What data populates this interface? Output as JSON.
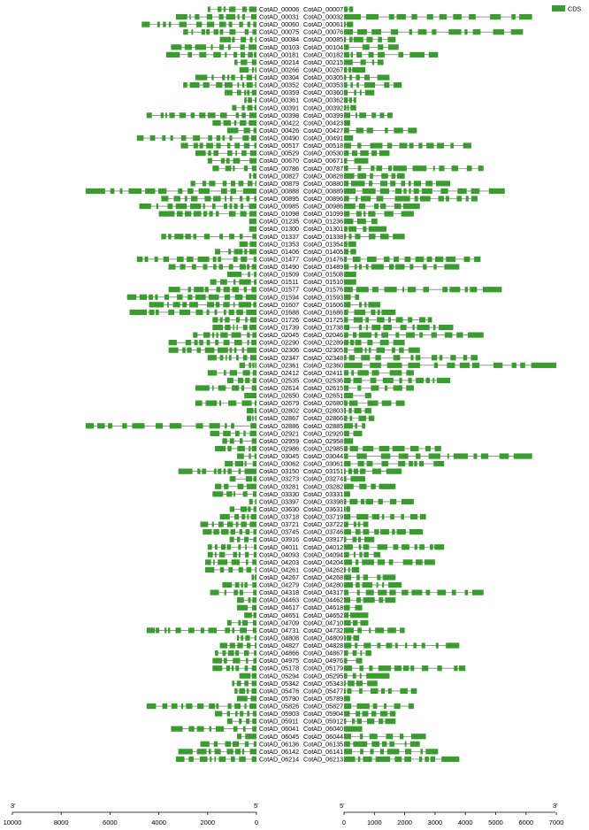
{
  "chart_data": {
    "type": "gene_structure",
    "legend": [
      {
        "label": "CDS",
        "color": "#3a9b2e"
      }
    ],
    "left_axis": {
      "reversed": true,
      "ticks": [
        10000,
        8000,
        6000,
        4000,
        2000,
        0
      ],
      "end_label": "3'",
      "zero_label": "5'"
    },
    "right_axis": {
      "ticks": [
        0,
        1000,
        2000,
        3000,
        4000,
        5000,
        6000,
        7000
      ],
      "start_label": "5'",
      "end_label": "3'"
    },
    "pairs": [
      {
        "left": "CotAD_00006",
        "right": "CotAD_00007",
        "left_len": 2000,
        "right_len": 300
      },
      {
        "left": "CotAD_00031",
        "right": "CotAD_00032",
        "left_len": 3300,
        "right_len": 6200
      },
      {
        "left": "CotAD_00060",
        "right": "CotAD_00061",
        "left_len": 4700,
        "right_len": 300
      },
      {
        "left": "CotAD_00075",
        "right": "CotAD_00076",
        "left_len": 3000,
        "right_len": 5900
      },
      {
        "left": "CotAD_00084",
        "right": "CotAD_00085",
        "left_len": 1500,
        "right_len": 1700
      },
      {
        "left": "CotAD_00103",
        "right": "CotAD_00104",
        "left_len": 3500,
        "right_len": 1800
      },
      {
        "left": "CotAD_00181",
        "right": "CotAD_00182",
        "left_len": 3700,
        "right_len": 3100
      },
      {
        "left": "CotAD_00214",
        "right": "CotAD_00215",
        "left_len": 900,
        "right_len": 1300
      },
      {
        "left": "CotAD_00266",
        "right": "CotAD_00267",
        "left_len": 700,
        "right_len": 700
      },
      {
        "left": "CotAD_00304",
        "right": "CotAD_00305",
        "left_len": 2500,
        "right_len": 1500
      },
      {
        "left": "CotAD_00352",
        "right": "CotAD_00353",
        "left_len": 3000,
        "right_len": 1900
      },
      {
        "left": "CotAD_00359",
        "right": "CotAD_00360",
        "left_len": 1300,
        "right_len": 1000
      },
      {
        "left": "CotAD_00361",
        "right": "CotAD_00362",
        "left_len": 500,
        "right_len": 400
      },
      {
        "left": "CotAD_00391",
        "right": "CotAD_00392",
        "left_len": 1000,
        "right_len": 400
      },
      {
        "left": "CotAD_00398",
        "right": "CotAD_00399",
        "left_len": 4500,
        "right_len": 1600
      },
      {
        "left": "CotAD_00422",
        "right": "CotAD_00423",
        "left_len": 1800,
        "right_len": 200
      },
      {
        "left": "CotAD_00426",
        "right": "CotAD_00427",
        "left_len": 1200,
        "right_len": 2400
      },
      {
        "left": "CotAD_00490",
        "right": "CotAD_00491",
        "left_len": 4900,
        "right_len": 300
      },
      {
        "left": "CotAD_00517",
        "right": "CotAD_00518",
        "left_len": 3100,
        "right_len": 4200
      },
      {
        "left": "CotAD_00529",
        "right": "CotAD_00530",
        "left_len": 2500,
        "right_len": 1500
      },
      {
        "left": "CotAD_00670",
        "right": "CotAD_00671",
        "left_len": 2000,
        "right_len": 800
      },
      {
        "left": "CotAD_00786",
        "right": "CotAD_00787",
        "left_len": 1800,
        "right_len": 4600
      },
      {
        "left": "CotAD_00827",
        "right": "CotAD_00828",
        "left_len": 300,
        "right_len": 2000
      },
      {
        "left": "CotAD_00879",
        "right": "CotAD_00880",
        "left_len": 2700,
        "right_len": 3500
      },
      {
        "left": "CotAD_00888",
        "right": "CotAD_00889",
        "left_len": 7000,
        "right_len": 5300
      },
      {
        "left": "CotAD_00895",
        "right": "CotAD_00896",
        "left_len": 3900,
        "right_len": 4400
      },
      {
        "left": "CotAD_00985",
        "right": "CotAD_00986",
        "left_len": 4800,
        "right_len": 2500
      },
      {
        "left": "CotAD_01098",
        "right": "CotAD_01099",
        "left_len": 4000,
        "right_len": 2300
      },
      {
        "left": "CotAD_01235",
        "right": "CotAD_01236",
        "left_len": 300,
        "right_len": 1100
      },
      {
        "left": "CotAD_01300",
        "right": "CotAD_01301",
        "left_len": 300,
        "right_len": 1400
      },
      {
        "left": "CotAD_01337",
        "right": "CotAD_01338",
        "left_len": 3900,
        "right_len": 2000
      },
      {
        "left": "CotAD_01353",
        "right": "CotAD_01354",
        "left_len": 700,
        "right_len": 400
      },
      {
        "left": "CotAD_01406",
        "right": "CotAD_01405",
        "left_len": 1700,
        "right_len": 400
      },
      {
        "left": "CotAD_01477",
        "right": "CotAD_01476",
        "left_len": 4900,
        "right_len": 4500
      },
      {
        "left": "CotAD_01490",
        "right": "CotAD_01489",
        "left_len": 3600,
        "right_len": 3800
      },
      {
        "left": "CotAD_01509",
        "right": "CotAD_01508",
        "left_len": 1200,
        "right_len": 400
      },
      {
        "left": "CotAD_01511",
        "right": "CotAD_01510",
        "left_len": 1900,
        "right_len": 400
      },
      {
        "left": "CotAD_01577",
        "right": "CotAD_01576",
        "left_len": 3600,
        "right_len": 5200
      },
      {
        "left": "CotAD_01594",
        "right": "CotAD_01593",
        "left_len": 5300,
        "right_len": 500
      },
      {
        "left": "CotAD_01607",
        "right": "CotAD_01606",
        "left_len": 4400,
        "right_len": 1200
      },
      {
        "left": "CotAD_01688",
        "right": "CotAD_01686",
        "left_len": 5200,
        "right_len": 1700
      },
      {
        "left": "CotAD_01726",
        "right": "CotAD_01725",
        "left_len": 1800,
        "right_len": 2900
      },
      {
        "left": "CotAD_01739",
        "right": "CotAD_01738",
        "left_len": 1800,
        "right_len": 3600
      },
      {
        "left": "CotAD_02045",
        "right": "CotAD_02046",
        "left_len": 2600,
        "right_len": 4600
      },
      {
        "left": "CotAD_02290",
        "right": "CotAD_02289",
        "left_len": 3600,
        "right_len": 2000
      },
      {
        "left": "CotAD_02306",
        "right": "CotAD_02305",
        "left_len": 3600,
        "right_len": 2500
      },
      {
        "left": "CotAD_02347",
        "right": "CotAD_02348",
        "left_len": 2000,
        "right_len": 4400
      },
      {
        "left": "CotAD_02361",
        "right": "CotAD_02360",
        "left_len": 700,
        "right_len": 7000
      },
      {
        "left": "CotAD_02412",
        "right": "CotAD_02411",
        "left_len": 2000,
        "right_len": 2300
      },
      {
        "left": "CotAD_02535",
        "right": "CotAD_02536",
        "left_len": 1200,
        "right_len": 3500
      },
      {
        "left": "CotAD_02614",
        "right": "CotAD_02615",
        "left_len": 2500,
        "right_len": 2300
      },
      {
        "left": "CotAD_02650",
        "right": "CotAD_02651",
        "left_len": 500,
        "right_len": 900
      },
      {
        "left": "CotAD_02679",
        "right": "CotAD_02680",
        "left_len": 2500,
        "right_len": 2000
      },
      {
        "left": "CotAD_02802",
        "right": "CotAD_02803",
        "left_len": 400,
        "right_len": 900
      },
      {
        "left": "CotAD_02867",
        "right": "CotAD_02866",
        "left_len": 400,
        "right_len": 1000
      },
      {
        "left": "CotAD_02886",
        "right": "CotAD_02885",
        "left_len": 7000,
        "right_len": 700
      },
      {
        "left": "CotAD_02921",
        "right": "CotAD_02920",
        "left_len": 1900,
        "right_len": 600
      },
      {
        "left": "CotAD_02959",
        "right": "CotAD_02958",
        "left_len": 1400,
        "right_len": 300
      },
      {
        "left": "CotAD_02986",
        "right": "CotAD_02985",
        "left_len": 1700,
        "right_len": 3200
      },
      {
        "left": "CotAD_03045",
        "right": "CotAD_03044",
        "left_len": 800,
        "right_len": 6200
      },
      {
        "left": "CotAD_03062",
        "right": "CotAD_03061",
        "left_len": 1300,
        "right_len": 3300
      },
      {
        "left": "CotAD_03150",
        "right": "CotAD_03151",
        "left_len": 3200,
        "right_len": 1900
      },
      {
        "left": "CotAD_03273",
        "right": "CotAD_03274",
        "left_len": 1100,
        "right_len": 700
      },
      {
        "left": "CotAD_03281",
        "right": "CotAD_03282",
        "left_len": 1700,
        "right_len": 1700
      },
      {
        "left": "CotAD_03330",
        "right": "CotAD_03331",
        "left_len": 1800,
        "right_len": 200
      },
      {
        "left": "CotAD_03397",
        "right": "CotAD_03398",
        "left_len": 300,
        "right_len": 2300
      },
      {
        "left": "CotAD_03630",
        "right": "CotAD_03631",
        "left_len": 1100,
        "right_len": 200
      },
      {
        "left": "CotAD_03718",
        "right": "CotAD_03719",
        "left_len": 1500,
        "right_len": 2700
      },
      {
        "left": "CotAD_03721",
        "right": "CotAD_03722",
        "left_len": 2300,
        "right_len": 800
      },
      {
        "left": "CotAD_03745",
        "right": "CotAD_03746",
        "left_len": 2200,
        "right_len": 2600
      },
      {
        "left": "CotAD_03916",
        "right": "CotAD_03917",
        "left_len": 1100,
        "right_len": 1000
      },
      {
        "left": "CotAD_04011",
        "right": "CotAD_04012",
        "left_len": 2000,
        "right_len": 3300
      },
      {
        "left": "CotAD_04093",
        "right": "CotAD_04094",
        "left_len": 2000,
        "right_len": 1200
      },
      {
        "left": "CotAD_04203",
        "right": "CotAD_04204",
        "left_len": 2100,
        "right_len": 3000
      },
      {
        "left": "CotAD_04261",
        "right": "CotAD_04262",
        "left_len": 2100,
        "right_len": 500
      },
      {
        "left": "CotAD_04267",
        "right": "CotAD_04268",
        "left_len": 200,
        "right_len": 1700
      },
      {
        "left": "CotAD_04279",
        "right": "CotAD_04280",
        "left_len": 1400,
        "right_len": 1900
      },
      {
        "left": "CotAD_04318",
        "right": "CotAD_04317",
        "left_len": 1900,
        "right_len": 4600
      },
      {
        "left": "CotAD_04463",
        "right": "CotAD_04462",
        "left_len": 800,
        "right_len": 1700
      },
      {
        "left": "CotAD_04617",
        "right": "CotAD_04618",
        "left_len": 800,
        "right_len": 600
      },
      {
        "left": "CotAD_04651",
        "right": "CotAD_04652",
        "left_len": 500,
        "right_len": 800
      },
      {
        "left": "CotAD_04709",
        "right": "CotAD_04710",
        "left_len": 1200,
        "right_len": 800
      },
      {
        "left": "CotAD_04731",
        "right": "CotAD_04732",
        "left_len": 4500,
        "right_len": 2000
      },
      {
        "left": "CotAD_04808",
        "right": "CotAD_04809",
        "left_len": 800,
        "right_len": 500
      },
      {
        "left": "CotAD_04827",
        "right": "CotAD_04828",
        "left_len": 1500,
        "right_len": 3800
      },
      {
        "left": "CotAD_04866",
        "right": "CotAD_04867",
        "left_len": 1700,
        "right_len": 900
      },
      {
        "left": "CotAD_04975",
        "right": "CotAD_04976",
        "left_len": 1800,
        "right_len": 600
      },
      {
        "left": "CotAD_05178",
        "right": "CotAD_05179",
        "left_len": 1800,
        "right_len": 4000
      },
      {
        "left": "CotAD_05294",
        "right": "CotAD_05295",
        "left_len": 700,
        "right_len": 1500
      },
      {
        "left": "CotAD_05342",
        "right": "CotAD_05343",
        "left_len": 1000,
        "right_len": 1100
      },
      {
        "left": "CotAD_05476",
        "right": "CotAD_05477",
        "left_len": 900,
        "right_len": 2400
      },
      {
        "left": "CotAD_05790",
        "right": "CotAD_05789",
        "left_len": 800,
        "right_len": 200
      },
      {
        "left": "CotAD_05826",
        "right": "CotAD_05827",
        "left_len": 4500,
        "right_len": 2300
      },
      {
        "left": "CotAD_05903",
        "right": "CotAD_05904",
        "left_len": 1700,
        "right_len": 1700
      },
      {
        "left": "CotAD_05911",
        "right": "CotAD_05912",
        "left_len": 1200,
        "right_len": 1700
      },
      {
        "left": "CotAD_06041",
        "right": "CotAD_06040",
        "left_len": 3500,
        "right_len": 600
      },
      {
        "left": "CotAD_06045",
        "right": "CotAD_06044",
        "left_len": 800,
        "right_len": 2700
      },
      {
        "left": "CotAD_06136",
        "right": "CotAD_06135",
        "left_len": 2300,
        "right_len": 2500
      },
      {
        "left": "CotAD_06142",
        "right": "CotAD_06141",
        "left_len": 3200,
        "right_len": 3100
      },
      {
        "left": "CotAD_06214",
        "right": "CotAD_06213",
        "left_len": 3300,
        "right_len": 3800
      }
    ]
  }
}
